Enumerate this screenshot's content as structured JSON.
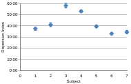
{
  "chart_data": {
    "type": "scatter",
    "x_label": "Subject",
    "y_label": "Dispersion Index",
    "x": [
      1,
      2,
      3,
      4,
      5,
      6,
      7
    ],
    "values": [
      37.5,
      41,
      58,
      53,
      39.5,
      33,
      34.5
    ],
    "errors": [
      1.5,
      1.8,
      2.0,
      1.2,
      1.2,
      1.0,
      1.5
    ],
    "color": "#4f81bd",
    "marker": "diamond",
    "xlim": [
      0,
      7
    ],
    "xticks": [
      0,
      1,
      2,
      3,
      4,
      5,
      6,
      7
    ],
    "ylim": [
      0,
      60
    ],
    "yticks": [
      {
        "value": 0,
        "label": "0.00"
      },
      {
        "value": 10,
        "label": "10.00"
      },
      {
        "value": 20,
        "label": "20.00"
      },
      {
        "value": 30,
        "label": "30.00"
      },
      {
        "value": 40,
        "label": "40.00"
      },
      {
        "value": 50,
        "label": "50.00"
      },
      {
        "value": 60,
        "label": "60.00"
      }
    ],
    "grid": true
  }
}
